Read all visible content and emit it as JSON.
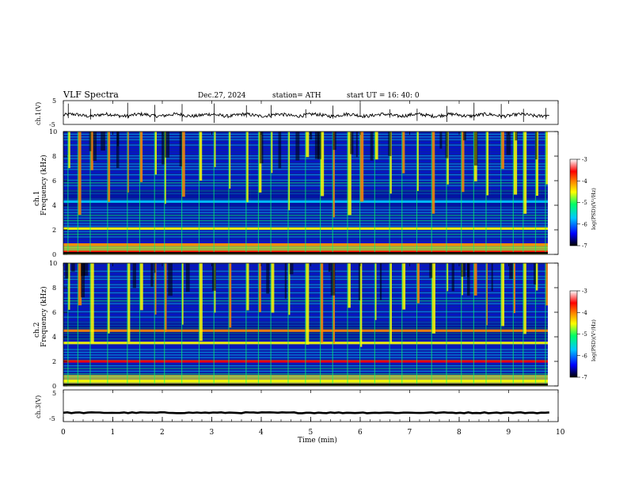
{
  "header": {
    "title": "VLF  Spectra",
    "date": "Dec.27, 2024",
    "station": "station= ATH",
    "start": "start  UT  =   16: 40: 0"
  },
  "colors": {
    "plot_background": "#0a1fa8",
    "trace": "#000000",
    "colormap": [
      "#000000",
      "#0000ff",
      "#00c8ff",
      "#00ff66",
      "#ffff00",
      "#ff8800",
      "#ff0000",
      "#ffffff"
    ]
  },
  "chart_data": [
    {
      "type": "line",
      "name": "ch1-voltage",
      "ylabel": "ch.1(V)",
      "ylim": [
        -5,
        5
      ],
      "yticks": [
        "5",
        "-5"
      ],
      "xlim": [
        0,
        10
      ],
      "level": -1.1,
      "noise": 0.7
    },
    {
      "type": "heatmap",
      "name": "ch1-spectrogram",
      "ylabel_top": "ch.1",
      "ylabel": "Frequency  (kHz)",
      "ylim": [
        0,
        10
      ],
      "yticks": [
        "0",
        "2",
        "4",
        "6",
        "8",
        "10"
      ],
      "xlim": [
        0,
        10
      ],
      "colorbar": {
        "label": "log(PSD)(V²/Hz)",
        "ticks": [
          "-3",
          "-4",
          "-5",
          "-6",
          "-7"
        ],
        "range": [
          -7,
          -3
        ]
      },
      "bands": [
        {
          "freq": 2.1,
          "level": -4.8
        },
        {
          "freq": 0.8,
          "level": -4.5
        },
        {
          "freq": 0.2,
          "level": -4.0
        },
        {
          "freq": 4.3,
          "level": -6.0
        }
      ],
      "burst_times": [
        0.1,
        0.3,
        0.55,
        0.9,
        1.3,
        1.55,
        1.85,
        2.05,
        2.4,
        2.75,
        3.05,
        3.35,
        3.7,
        3.95,
        4.2,
        4.55,
        4.9,
        5.2,
        5.45,
        5.75,
        6.0,
        6.3,
        6.6,
        6.85,
        7.15,
        7.45,
        7.75,
        8.05,
        8.3,
        8.55,
        8.85,
        9.1,
        9.3,
        9.55,
        9.75
      ]
    },
    {
      "type": "heatmap",
      "name": "ch2-spectrogram",
      "ylabel_top": "ch.2",
      "ylabel": "Frequency  (kHz)",
      "ylim": [
        0,
        10
      ],
      "yticks": [
        "0",
        "2",
        "4",
        "6",
        "8",
        "10"
      ],
      "xlim": [
        0,
        10
      ],
      "colorbar": {
        "label": "log(PSD)(V²/Hz)",
        "ticks": [
          "-3",
          "-4",
          "-5",
          "-6",
          "-7"
        ],
        "range": [
          -7,
          -3
        ]
      },
      "bands": [
        {
          "freq": 2.0,
          "level": -4.0
        },
        {
          "freq": 4.5,
          "level": -4.3
        },
        {
          "freq": 3.5,
          "level": -4.9
        },
        {
          "freq": 0.4,
          "level": -4.6
        }
      ],
      "burst_times": [
        0.1,
        0.3,
        0.55,
        0.9,
        1.3,
        1.55,
        1.85,
        2.05,
        2.4,
        2.75,
        3.05,
        3.35,
        3.7,
        3.95,
        4.2,
        4.55,
        4.9,
        5.2,
        5.45,
        5.75,
        6.0,
        6.3,
        6.6,
        6.85,
        7.15,
        7.45,
        7.75,
        8.05,
        8.3,
        8.55,
        8.85,
        9.1,
        9.3,
        9.55,
        9.75
      ]
    },
    {
      "type": "line",
      "name": "ch3-voltage",
      "ylabel": "ch.3(V)",
      "ylim": [
        -5,
        5
      ],
      "yticks": [
        "5",
        "-5"
      ],
      "xlim": [
        0,
        10
      ],
      "level": -2.2,
      "noise": 0.15
    }
  ],
  "xaxis": {
    "label": "Time  (min)",
    "ticks": [
      "0",
      "1",
      "2",
      "3",
      "4",
      "5",
      "6",
      "7",
      "8",
      "9",
      "10"
    ]
  }
}
